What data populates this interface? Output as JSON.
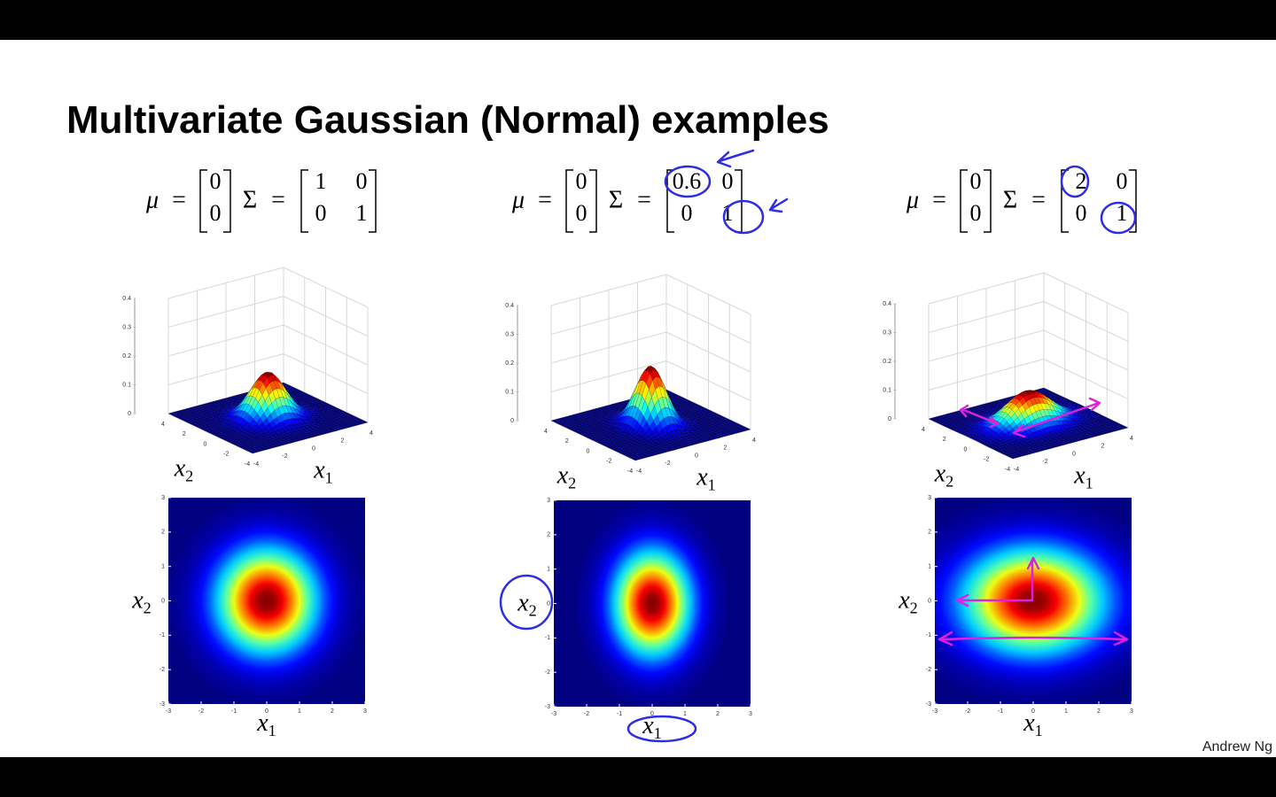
{
  "title": "Multivariate Gaussian (Normal) examples",
  "author": "Andrew Ng",
  "symbols": {
    "mu": "μ",
    "sigma": "Σ",
    "equals": "="
  },
  "x1_label": {
    "var": "x",
    "sub": "1"
  },
  "x2_label": {
    "var": "x",
    "sub": "2"
  },
  "surface_xylim": [
    -4,
    4
  ],
  "surface_xyticks": [
    -4,
    -2,
    0,
    2,
    4
  ],
  "surface_zlim": [
    0,
    0.4
  ],
  "surface_zticks": [
    0,
    0.1,
    0.2,
    0.3,
    0.4
  ],
  "heatmap_lim": [
    -3,
    3
  ],
  "heatmap_ticks": [
    -3,
    -2,
    -1,
    0,
    1,
    2,
    3
  ],
  "panels": [
    {
      "mu": [
        0,
        0
      ],
      "sigma": [
        [
          1,
          0
        ],
        [
          0,
          1
        ]
      ]
    },
    {
      "mu": [
        0,
        0
      ],
      "sigma": [
        [
          0.6,
          0
        ],
        [
          0,
          1
        ]
      ]
    },
    {
      "mu": [
        0,
        0
      ],
      "sigma": [
        [
          2,
          0
        ],
        [
          0,
          1
        ]
      ]
    }
  ]
}
